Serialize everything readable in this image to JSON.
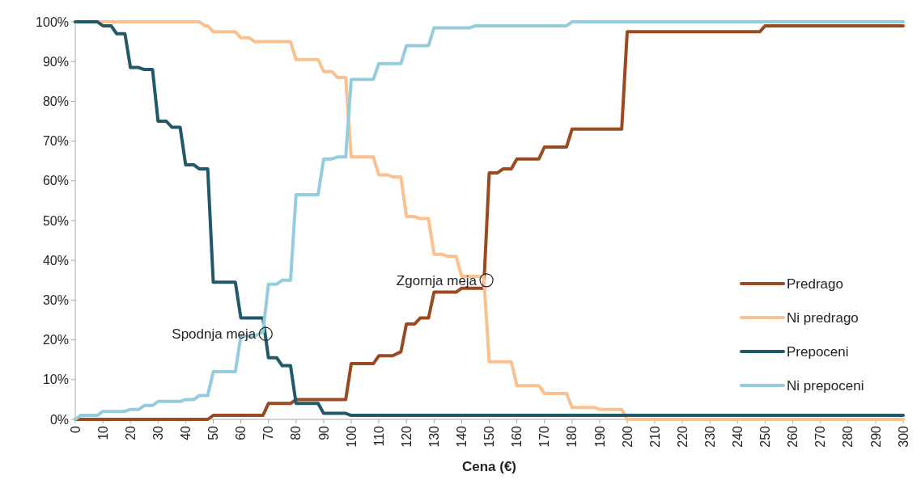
{
  "chart_data": {
    "type": "line",
    "xlabel": "Cena (€)",
    "xlim": [
      0,
      300
    ],
    "xticks": [
      0,
      10,
      20,
      30,
      40,
      50,
      60,
      70,
      80,
      90,
      100,
      110,
      120,
      130,
      140,
      150,
      160,
      170,
      180,
      190,
      200,
      210,
      220,
      230,
      240,
      250,
      260,
      270,
      280,
      290,
      300
    ],
    "ylim": [
      0,
      100
    ],
    "yticks": [
      {
        "value": 0,
        "label": "0%"
      },
      {
        "value": 10,
        "label": "10%"
      },
      {
        "value": 20,
        "label": "20%"
      },
      {
        "value": 30,
        "label": "30%"
      },
      {
        "value": 40,
        "label": "40%"
      },
      {
        "value": 50,
        "label": "50%"
      },
      {
        "value": 60,
        "label": "60%"
      },
      {
        "value": 70,
        "label": "70%"
      },
      {
        "value": 80,
        "label": "80%"
      },
      {
        "value": 90,
        "label": "90%"
      },
      {
        "value": 100,
        "label": "100%"
      }
    ],
    "grid": false,
    "legend": "bottom right",
    "marker": "none",
    "line_style": "solid",
    "annotations": [
      {
        "text": "Spodnja meja",
        "x": 69,
        "y": 21.5
      },
      {
        "text": "Zgornja meja",
        "x": 149,
        "y": 35
      }
    ],
    "series": [
      {
        "name": "Predrago",
        "color": "#9a4a21",
        "x": [
          0,
          48,
          50,
          68,
          70,
          78,
          80,
          98,
          100,
          108,
          110,
          115,
          118,
          120,
          123,
          125,
          128,
          130,
          138,
          140,
          148,
          150,
          153,
          155,
          158,
          160,
          168,
          170,
          178,
          180,
          198,
          200,
          248,
          250,
          300
        ],
        "values": [
          0,
          0,
          1,
          1,
          4,
          4,
          5,
          5,
          14,
          14,
          16,
          16,
          17,
          24,
          24,
          25.5,
          25.5,
          32,
          32,
          33,
          33,
          62,
          62,
          63,
          63,
          65.5,
          65.5,
          68.5,
          68.5,
          73,
          73,
          97.5,
          97.5,
          99,
          99
        ]
      },
      {
        "name": "Ni predrago",
        "color": "#fac090",
        "x": [
          0,
          45,
          47,
          48,
          50,
          58,
          60,
          63,
          65,
          78,
          80,
          88,
          90,
          93,
          95,
          98,
          100,
          108,
          110,
          113,
          115,
          118,
          120,
          123,
          125,
          128,
          130,
          133,
          135,
          138,
          140,
          148,
          150,
          158,
          160,
          168,
          170,
          178,
          180,
          188,
          190,
          198,
          200,
          300
        ],
        "values": [
          100,
          100,
          99,
          99,
          97.5,
          97.5,
          96,
          96,
          95,
          95,
          90.5,
          90.5,
          87.5,
          87.5,
          86,
          86,
          66,
          66,
          61.5,
          61.5,
          61,
          61,
          51,
          51,
          50.5,
          50.5,
          41.5,
          41.5,
          41,
          41,
          36,
          36,
          14.5,
          14.5,
          8.5,
          8.5,
          6.5,
          6.5,
          3,
          3,
          2.5,
          2.5,
          0,
          0
        ]
      },
      {
        "name": "Prepoceni",
        "color": "#215968",
        "x": [
          0,
          8,
          10,
          13,
          15,
          18,
          20,
          23,
          25,
          28,
          30,
          33,
          35,
          38,
          40,
          43,
          45,
          48,
          50,
          58,
          60,
          68,
          70,
          73,
          75,
          78,
          80,
          88,
          90,
          98,
          100,
          300
        ],
        "values": [
          100,
          100,
          99,
          99,
          97,
          97,
          88.5,
          88.5,
          88,
          88,
          75,
          75,
          73.5,
          73.5,
          64,
          64,
          63,
          63,
          34.5,
          34.5,
          25.5,
          25.5,
          15.5,
          15.5,
          13.5,
          13.5,
          4,
          4,
          1.5,
          1.5,
          1,
          1
        ]
      },
      {
        "name": "Ni prepoceni",
        "color": "#93cddd",
        "x": [
          0,
          2,
          8,
          10,
          18,
          20,
          23,
          25,
          28,
          30,
          38,
          40,
          43,
          45,
          48,
          50,
          58,
          60,
          65,
          68,
          70,
          73,
          75,
          78,
          80,
          88,
          90,
          93,
          95,
          98,
          100,
          108,
          110,
          118,
          120,
          128,
          130,
          143,
          145,
          178,
          180,
          300
        ],
        "values": [
          0,
          1,
          1,
          2,
          2,
          2.5,
          2.5,
          3.5,
          3.5,
          4.5,
          4.5,
          5,
          5,
          6,
          6,
          12,
          12,
          21,
          21,
          22,
          34,
          34,
          35,
          35,
          56.5,
          56.5,
          65.5,
          65.5,
          66,
          66,
          85.5,
          85.5,
          89.5,
          89.5,
          94,
          94,
          98.5,
          98.5,
          99,
          99,
          100,
          100
        ]
      }
    ]
  }
}
